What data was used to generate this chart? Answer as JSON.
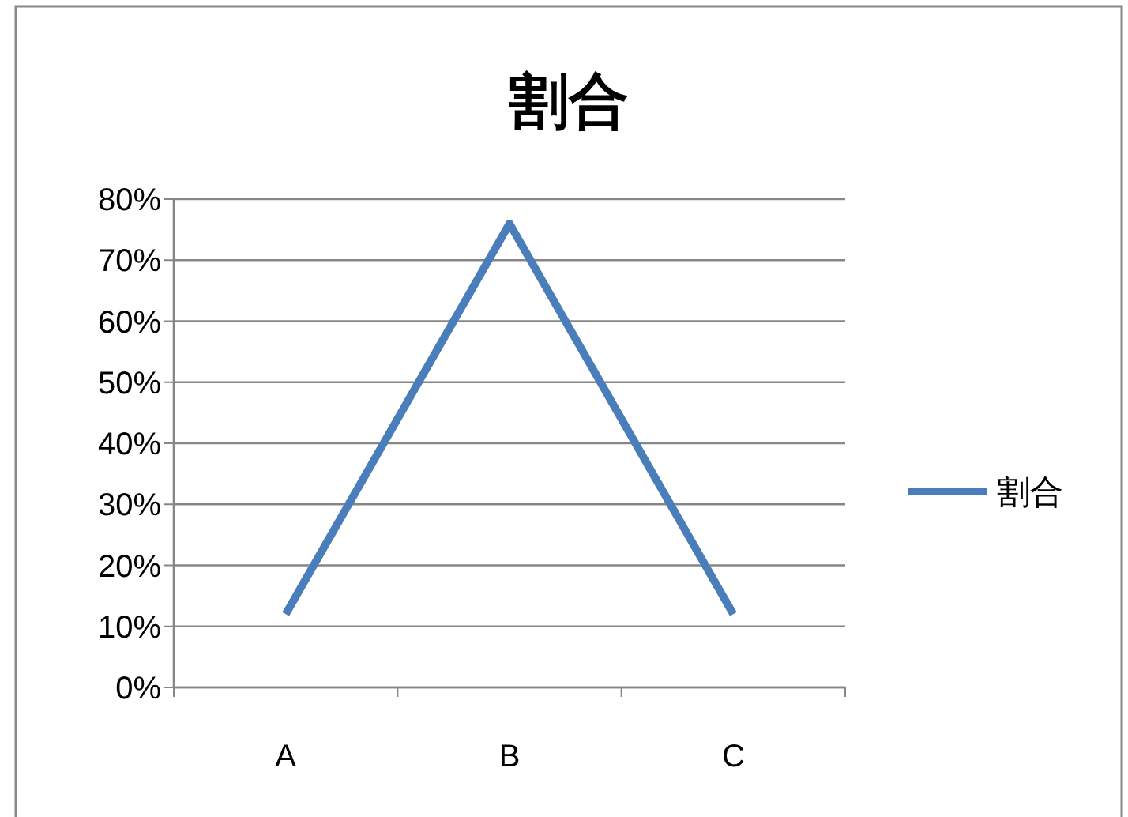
{
  "chart_data": {
    "type": "line",
    "title": "割合",
    "categories": [
      "A",
      "B",
      "C"
    ],
    "series": [
      {
        "name": "割合",
        "color": "#4a7ebb",
        "values": [
          12,
          76,
          12
        ]
      }
    ],
    "ylim": [
      0,
      80
    ],
    "yticks": [
      {
        "value": 0,
        "label": "0%"
      },
      {
        "value": 10,
        "label": "10%"
      },
      {
        "value": 20,
        "label": "20%"
      },
      {
        "value": 30,
        "label": "30%"
      },
      {
        "value": 40,
        "label": "40%"
      },
      {
        "value": 50,
        "label": "50%"
      },
      {
        "value": 60,
        "label": "60%"
      },
      {
        "value": 70,
        "label": "70%"
      },
      {
        "value": 80,
        "label": "80%"
      }
    ],
    "grid": "y",
    "legend": "right",
    "marker": "none",
    "line_style": "solid"
  }
}
